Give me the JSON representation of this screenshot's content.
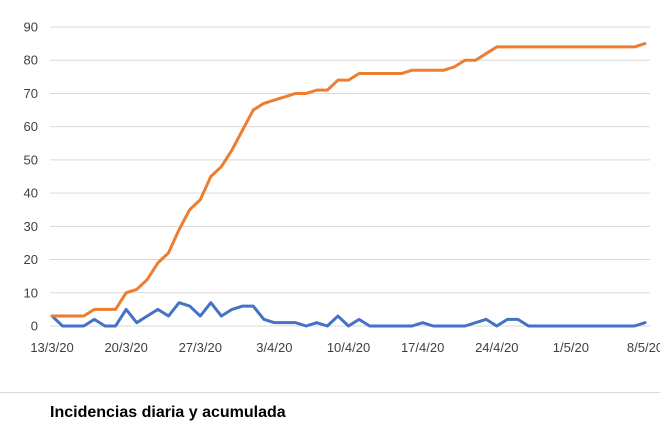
{
  "chart_data": {
    "type": "line",
    "title": "",
    "xlabel": "",
    "ylabel": "",
    "ylim": [
      0,
      90
    ],
    "yticks": [
      0,
      10,
      20,
      30,
      40,
      50,
      60,
      70,
      80,
      90
    ],
    "grid": true,
    "legend": "none",
    "xtick_labels": [
      "13/3/20",
      "20/3/20",
      "27/3/20",
      "3/4/20",
      "10/4/20",
      "17/4/20",
      "24/4/20",
      "1/5/20",
      "8/5/20"
    ],
    "x": [
      "13/3/20",
      "14/3/20",
      "15/3/20",
      "16/3/20",
      "17/3/20",
      "18/3/20",
      "19/3/20",
      "20/3/20",
      "21/3/20",
      "22/3/20",
      "23/3/20",
      "24/3/20",
      "25/3/20",
      "26/3/20",
      "27/3/20",
      "28/3/20",
      "29/3/20",
      "30/3/20",
      "31/3/20",
      "1/4/20",
      "2/4/20",
      "3/4/20",
      "4/4/20",
      "5/4/20",
      "6/4/20",
      "7/4/20",
      "8/4/20",
      "9/4/20",
      "10/4/20",
      "11/4/20",
      "12/4/20",
      "13/4/20",
      "14/4/20",
      "15/4/20",
      "16/4/20",
      "17/4/20",
      "18/4/20",
      "19/4/20",
      "20/4/20",
      "21/4/20",
      "22/4/20",
      "23/4/20",
      "24/4/20",
      "25/4/20",
      "26/4/20",
      "27/4/20",
      "28/4/20",
      "29/4/20",
      "30/4/20",
      "1/5/20",
      "2/5/20",
      "3/5/20",
      "4/5/20",
      "5/5/20",
      "6/5/20",
      "7/5/20",
      "8/5/20"
    ],
    "series": [
      {
        "color": "#4472c4",
        "values": [
          3,
          0,
          0,
          0,
          2,
          0,
          0,
          5,
          1,
          3,
          5,
          3,
          7,
          6,
          3,
          7,
          3,
          5,
          6,
          6,
          2,
          1,
          1,
          1,
          0,
          1,
          0,
          3,
          0,
          2,
          0,
          0,
          0,
          0,
          0,
          1,
          0,
          0,
          0,
          0,
          1,
          2,
          0,
          2,
          2,
          0,
          0,
          0,
          0,
          0,
          0,
          0,
          0,
          0,
          0,
          0,
          1
        ]
      },
      {
        "color": "#ed7d31",
        "values": [
          3,
          3,
          3,
          3,
          5,
          5,
          5,
          10,
          11,
          14,
          19,
          22,
          29,
          35,
          38,
          45,
          48,
          53,
          59,
          65,
          67,
          68,
          69,
          70,
          70,
          71,
          71,
          74,
          74,
          76,
          76,
          76,
          76,
          76,
          77,
          77,
          77,
          77,
          78,
          80,
          80,
          82,
          84,
          84,
          84,
          84,
          84,
          84,
          84,
          84,
          84,
          84,
          84,
          84,
          84,
          84,
          85
        ]
      }
    ]
  },
  "caption": "Incidencias diaria y acumulada"
}
